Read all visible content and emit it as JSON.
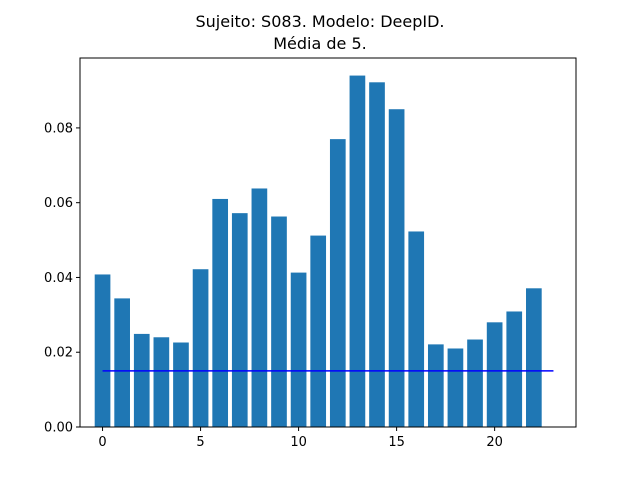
{
  "chart_data": {
    "type": "bar",
    "title_line1": "Sujeito: S083. Modelo: DeepID.",
    "title_line2": "Média de 5.",
    "xlabel": "",
    "ylabel": "",
    "x": [
      0,
      1,
      2,
      3,
      4,
      5,
      6,
      7,
      8,
      9,
      10,
      11,
      12,
      13,
      14,
      15,
      16,
      17,
      18,
      19,
      20,
      21,
      22
    ],
    "values": [
      0.0408,
      0.0344,
      0.0249,
      0.024,
      0.0226,
      0.0422,
      0.061,
      0.0572,
      0.0638,
      0.0563,
      0.0413,
      0.0512,
      0.077,
      0.094,
      0.0922,
      0.085,
      0.0523,
      0.0221,
      0.021,
      0.0234,
      0.028,
      0.0309,
      0.0371
    ],
    "bar_color": "#1f77b4",
    "reference_line": {
      "value": 0.015,
      "x_start": 0,
      "x_end": 23,
      "color": "#0000ff"
    },
    "xlim": [
      -1.15,
      24.15
    ],
    "ylim": [
      0,
      0.0987
    ],
    "xticks": [
      0,
      5,
      10,
      15,
      20
    ],
    "xtick_labels": [
      "0",
      "5",
      "10",
      "15",
      "20"
    ],
    "yticks": [
      0.0,
      0.02,
      0.04,
      0.06,
      0.08
    ],
    "ytick_labels": [
      "0.00",
      "0.02",
      "0.04",
      "0.06",
      "0.08"
    ],
    "grid": false,
    "legend": "none"
  }
}
